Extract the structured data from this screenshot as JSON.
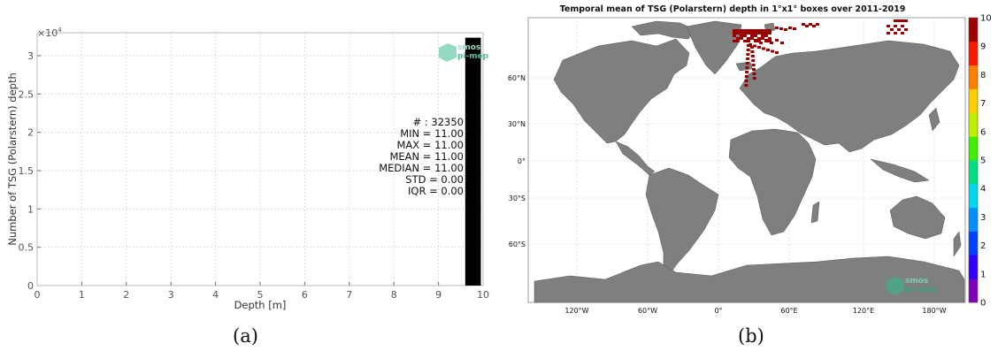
{
  "chart_data": [
    {
      "type": "bar",
      "panel_label": "(a)",
      "xlabel": "Depth [m]",
      "ylabel": "Number of TSG (Polarstern) depth",
      "y_multiplier": "×10",
      "y_multiplier_exp": "4",
      "xlim": [
        0,
        10
      ],
      "ylim": [
        0,
        33000
      ],
      "x_ticks": [
        "0",
        "1",
        "2",
        "3",
        "4",
        "5",
        "6",
        "7",
        "8",
        "9",
        "10"
      ],
      "y_ticks": [
        "0",
        "0.5",
        "1",
        "1.5",
        "2",
        "2.5",
        "3"
      ],
      "bars": [
        {
          "x_start": 9.6,
          "x_end": 9.95,
          "value": 32350
        }
      ],
      "bar_color": "#000000",
      "grid": true,
      "stats": [
        "# : 32350",
        "MIN = 11.00",
        "MAX =  11.00",
        "MEAN = 11.00",
        "MEDIAN = 11.00",
        "STD = 0.00",
        "IQR = 0.00"
      ],
      "watermark": {
        "line1": "smos",
        "line2": "pi-mep"
      }
    },
    {
      "type": "heatmap",
      "panel_label": "(b)",
      "title": "Temporal mean of TSG (Polarstern) depth in 1°x1° boxes over 2011-2019",
      "lat_ticks": [
        "60°N",
        "30°N",
        "0°",
        "30°S",
        "60°S"
      ],
      "lon_ticks": [
        "120°W",
        "60°W",
        "0°",
        "60°E",
        "120°E",
        "180°W"
      ],
      "colorbar": {
        "min": 0,
        "max": 10,
        "ticks": [
          "0",
          "1",
          "2",
          "3",
          "4",
          "5",
          "6",
          "7",
          "8",
          "9",
          "10"
        ],
        "colors": [
          "#8000c0",
          "#3000ff",
          "#0040ff",
          "#0090ff",
          "#00d8f0",
          "#00e080",
          "#40f000",
          "#c0f000",
          "#ffd000",
          "#ff8000",
          "#ff1800",
          "#a00000"
        ]
      },
      "data_value": 11,
      "data_color": "#9b0000",
      "land_color": "#7f7f7f",
      "ocean_color": "#ffffff",
      "watermark": {
        "line1": "smos",
        "line2": "pi-mep"
      }
    }
  ]
}
